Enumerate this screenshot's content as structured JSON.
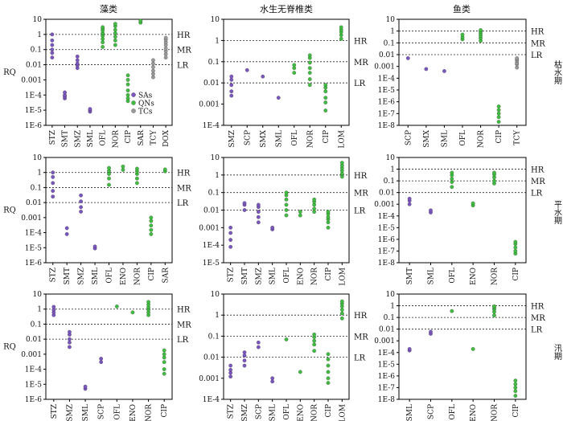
{
  "legend": {
    "entries": [
      {
        "label": "SAs",
        "color": "#7b55c0"
      },
      {
        "label": "QNs",
        "color": "#3fbf3f"
      },
      {
        "label": "TCs",
        "color": "#9a9a9a"
      }
    ]
  },
  "columns": [
    "藻类",
    "水生无脊椎类",
    "鱼类"
  ],
  "rows": [
    "枯水期",
    "平水期",
    "汛期"
  ],
  "ylabel": "RQ",
  "risk_labels": [
    "HR",
    "MR",
    "LR"
  ],
  "chart_data": [
    {
      "type": "scatter",
      "row": 0,
      "col": 0,
      "ylim_exp": [
        -6,
        1
      ],
      "ylabel": "RQ",
      "ticks": [
        "10",
        "1",
        "0.1",
        "0.01",
        "0.001",
        "1E-4",
        "1E-5",
        "1E-6"
      ],
      "thresholds": [
        1,
        0.1,
        0.01
      ],
      "categories": [
        "STZ",
        "SMT",
        "SMZ",
        "SML",
        "OFL",
        "NOR",
        "CIP",
        "SAR",
        "TCY",
        "DOX"
      ],
      "groups": [
        "SAs",
        "SAs",
        "SAs",
        "SAs",
        "QNs",
        "QNs",
        "QNs",
        "QNs",
        "TCs",
        "TCs"
      ],
      "values": [
        [
          0.03,
          0.06,
          0.1,
          0.2,
          0.4,
          1.0
        ],
        [
          6e-05,
          8e-05,
          0.0001,
          0.00015
        ],
        [
          0.006,
          0.009,
          0.012,
          0.02,
          0.035
        ],
        [
          8e-06,
          1e-05,
          1.2e-05
        ],
        [
          0.15,
          0.3,
          0.5,
          0.8,
          1.2,
          1.8,
          2.5,
          3
        ],
        [
          0.2,
          0.4,
          0.7,
          1.2,
          2,
          3.5,
          5
        ],
        [
          4e-05,
          6e-05,
          0.0001,
          0.0002,
          0.0005,
          0.001,
          0.002
        ],
        [
          6,
          8
        ],
        [
          0.0015,
          0.0025,
          0.004,
          0.007,
          0.012,
          0.02
        ],
        [
          0.03,
          0.05,
          0.08,
          0.12,
          0.2,
          0.3,
          0.45,
          0.6
        ]
      ]
    },
    {
      "type": "scatter",
      "row": 0,
      "col": 1,
      "ylim_exp": [
        -4,
        1
      ],
      "ylabel": "",
      "ticks": [
        "10",
        "1",
        "0.1",
        "0.01",
        "0.001",
        "1E-4"
      ],
      "thresholds": [
        1,
        0.1,
        0.01
      ],
      "categories": [
        "SMZ",
        "SCP",
        "SMX",
        "SML",
        "OFL",
        "NOR",
        "CIP",
        "LOM"
      ],
      "groups": [
        "SAs",
        "SAs",
        "SAs",
        "SAs",
        "QNs",
        "QNs",
        "QNs",
        "QNs"
      ],
      "values": [
        [
          0.0025,
          0.004,
          0.008,
          0.014,
          0.02
        ],
        [
          0.04
        ],
        [
          0.02
        ],
        [
          0.002
        ],
        [
          0.03,
          0.05,
          0.07
        ],
        [
          0.008,
          0.015,
          0.03,
          0.05,
          0.09,
          0.15,
          0.2
        ],
        [
          0.0005,
          0.0012,
          0.002,
          0.004,
          0.006,
          0.008
        ],
        [
          1.2,
          1.8,
          2.5,
          3.2,
          4.2
        ]
      ]
    },
    {
      "type": "scatter",
      "row": 0,
      "col": 2,
      "ylim_exp": [
        -8,
        1
      ],
      "ylabel": "",
      "ticks": [
        "10",
        "1",
        "0.1",
        "0.01",
        "0.001",
        "1E-4",
        "1E-5",
        "1E-6",
        "1E-7",
        "1E-8"
      ],
      "thresholds": [
        1,
        0.1,
        0.01
      ],
      "categories": [
        "SCP",
        "SMX",
        "SML",
        "OFL",
        "NOR",
        "CIP",
        "TCY"
      ],
      "groups": [
        "SAs",
        "SAs",
        "SAs",
        "QNs",
        "QNs",
        "QNs",
        "TCs"
      ],
      "values": [
        [
          0.005
        ],
        [
          0.0006
        ],
        [
          0.0004
        ],
        [
          0.2,
          0.3,
          0.5
        ],
        [
          0.15,
          0.25,
          0.4,
          0.6,
          0.9,
          1.2
        ],
        [
          2e-08,
          5e-08,
          1e-07,
          2e-07,
          4e-07
        ],
        [
          0.0008,
          0.0015,
          0.002,
          0.003,
          0.004,
          0.005
        ]
      ]
    },
    {
      "type": "scatter",
      "row": 1,
      "col": 0,
      "ylim_exp": [
        -6,
        1
      ],
      "ylabel": "RQ",
      "ticks": [
        "10",
        "1",
        "0.1",
        "0.01",
        "0.001",
        "1E-4",
        "1E-5",
        "1E-6"
      ],
      "thresholds": [
        1,
        0.1,
        0.01
      ],
      "categories": [
        "STZ",
        "SMT",
        "SMZ",
        "SML",
        "OFL",
        "ENO",
        "NOR",
        "CIP",
        "SAR"
      ],
      "groups": [
        "SAs",
        "SAs",
        "SAs",
        "SAs",
        "QNs",
        "QNs",
        "QNs",
        "QNs",
        "QNs"
      ],
      "values": [
        [
          0.025,
          0.06,
          0.2,
          0.5,
          1.0
        ],
        [
          8e-05,
          0.0002
        ],
        [
          0.0025,
          0.005,
          0.012,
          0.03
        ],
        [
          9e-06,
          1.2e-05
        ],
        [
          0.15,
          0.4,
          0.8,
          1.3,
          2
        ],
        [
          1.5,
          2.5
        ],
        [
          0.2,
          0.4,
          0.8,
          1.2,
          1.8
        ],
        [
          8e-05,
          0.00015,
          0.0003,
          0.0006,
          0.001
        ],
        [
          1.2,
          1.6
        ]
      ]
    },
    {
      "type": "scatter",
      "row": 1,
      "col": 1,
      "ylim_exp": [
        -5,
        1
      ],
      "ylabel": "",
      "ticks": [
        "10",
        "1",
        "0.1",
        "0.01",
        "0.001",
        "1E-4",
        "1E-5"
      ],
      "thresholds": [
        1,
        0.1,
        0.01
      ],
      "categories": [
        "STZ",
        "SMT",
        "SMZ",
        "SML",
        "OFL",
        "ENO",
        "NOR",
        "CIP",
        "LOM"
      ],
      "groups": [
        "SAs",
        "SAs",
        "SAs",
        "SAs",
        "QNs",
        "QNs",
        "QNs",
        "QNs",
        "QNs"
      ],
      "values": [
        [
          8e-05,
          0.0002,
          0.0005,
          0.001
        ],
        [
          0.01,
          0.02,
          0.025
        ],
        [
          0.002,
          0.004,
          0.008,
          0.015,
          0.02
        ],
        [
          0.0008,
          0.001
        ],
        [
          0.005,
          0.01,
          0.02,
          0.04,
          0.07,
          0.1
        ],
        [
          0.005,
          0.008
        ],
        [
          0.008,
          0.012,
          0.02,
          0.03,
          0.04
        ],
        [
          0.001,
          0.002,
          0.003,
          0.004,
          0.006,
          0.008
        ],
        [
          0.8,
          1.2,
          1.8,
          2.5,
          3.5,
          5
        ]
      ]
    },
    {
      "type": "scatter",
      "row": 1,
      "col": 2,
      "ylim_exp": [
        -8,
        1
      ],
      "ylabel": "",
      "ticks": [
        "10",
        "1",
        "0.1",
        "0.01",
        "0.001",
        "1E-4",
        "1E-5",
        "1E-6",
        "1E-7",
        "1E-8"
      ],
      "thresholds": [
        1,
        0.1,
        0.01
      ],
      "categories": [
        "SMT",
        "SML",
        "OFL",
        "ENO",
        "NOR",
        "CIP"
      ],
      "groups": [
        "SAs",
        "SAs",
        "QNs",
        "QNs",
        "QNs",
        "QNs"
      ],
      "values": [
        [
          0.001,
          0.002,
          0.003
        ],
        [
          0.0002,
          0.0003
        ],
        [
          0.03,
          0.08,
          0.15,
          0.3,
          0.5
        ],
        [
          0.0008,
          0.0012
        ],
        [
          0.06,
          0.1,
          0.2,
          0.35,
          0.5
        ],
        [
          6e-08,
          1e-07,
          2e-07,
          4e-07,
          6e-07
        ]
      ]
    },
    {
      "type": "scatter",
      "row": 2,
      "col": 0,
      "ylim_exp": [
        -6,
        1
      ],
      "ylabel": "RQ",
      "ticks": [
        "10",
        "1",
        "0.1",
        "0.01",
        "0.001",
        "1E-4",
        "1E-5",
        "1E-6"
      ],
      "thresholds": [
        1,
        0.1,
        0.01
      ],
      "categories": [
        "STZ",
        "SMZ",
        "SML",
        "SCP",
        "OFL",
        "ENO",
        "NOR",
        "CIP"
      ],
      "groups": [
        "SAs",
        "SAs",
        "SAs",
        "SAs",
        "QNs",
        "QNs",
        "QNs",
        "QNs"
      ],
      "values": [
        [
          0.4,
          0.6,
          0.9,
          1.4
        ],
        [
          0.003,
          0.006,
          0.01,
          0.02,
          0.03
        ],
        [
          5e-06,
          7e-06
        ],
        [
          0.0003,
          0.0005
        ],
        [
          1.5
        ],
        [
          0.6
        ],
        [
          0.4,
          0.6,
          0.9,
          1.3,
          2,
          3
        ],
        [
          5e-05,
          0.0001,
          0.0003,
          0.0006,
          0.001,
          0.0018
        ]
      ]
    },
    {
      "type": "scatter",
      "row": 2,
      "col": 1,
      "ylim_exp": [
        -4,
        1
      ],
      "ylabel": "",
      "ticks": [
        "10",
        "1",
        "0.1",
        "0.01",
        "0.001",
        "1E-4"
      ],
      "thresholds": [
        1,
        0.1,
        0.01
      ],
      "categories": [
        "STZ",
        "SMZ",
        "SCP",
        "SML",
        "OFL",
        "ENO",
        "NOR",
        "CIP",
        "LOM"
      ],
      "groups": [
        "SAs",
        "SAs",
        "SAs",
        "SAs",
        "QNs",
        "QNs",
        "QNs",
        "QNs",
        "QNs"
      ],
      "values": [
        [
          0.0012,
          0.0018,
          0.0025,
          0.004
        ],
        [
          0.004,
          0.007,
          0.012,
          0.017
        ],
        [
          0.03,
          0.05
        ],
        [
          0.0007,
          0.001
        ],
        [
          0.07
        ],
        [
          0.002
        ],
        [
          0.02,
          0.04,
          0.06,
          0.09,
          0.12
        ],
        [
          0.0006,
          0.001,
          0.002,
          0.004,
          0.008,
          0.014
        ],
        [
          0.7,
          1.2,
          1.8,
          2.6,
          3.5,
          4.5
        ]
      ]
    },
    {
      "type": "scatter",
      "row": 2,
      "col": 2,
      "ylim_exp": [
        -8,
        1
      ],
      "ylabel": "",
      "ticks": [
        "10",
        "1",
        "0.1",
        "0.01",
        "0.001",
        "1E-4",
        "1E-5",
        "1E-6",
        "1E-7",
        "1E-8"
      ],
      "thresholds": [
        1,
        0.1,
        0.01
      ],
      "categories": [
        "SML",
        "SCP",
        "OFL",
        "ENO",
        "NOR",
        "CIP"
      ],
      "groups": [
        "SAs",
        "SAs",
        "QNs",
        "QNs",
        "QNs",
        "QNs"
      ],
      "values": [
        [
          0.00015,
          0.0002
        ],
        [
          0.004,
          0.006
        ],
        [
          0.35
        ],
        [
          0.0002
        ],
        [
          0.15,
          0.3,
          0.5,
          0.7,
          0.9
        ],
        [
          2e-08,
          5e-08,
          1e-07,
          2e-07,
          4e-07
        ]
      ]
    }
  ]
}
